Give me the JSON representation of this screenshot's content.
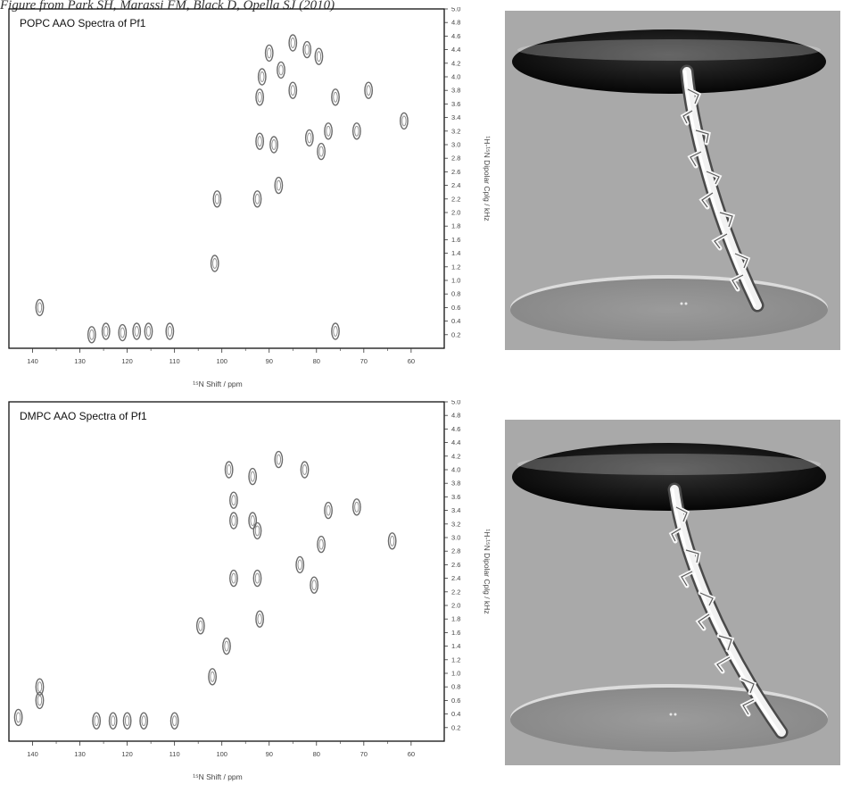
{
  "caption": "Figure from Park SH, Marassi FM, Black D, Opella SJ (2010)",
  "chart_data": [
    {
      "type": "scatter",
      "title": "POPC AAO Spectra of Pf1",
      "xlabel": "¹⁵N Shift / ppm",
      "ylabel": "¹H-¹⁵N Dipolar Cplg / kHz",
      "xlim": [
        145,
        53
      ],
      "ylim": [
        0.0,
        5.0
      ],
      "x_ticks": [
        "140",
        "130",
        "120",
        "110",
        "100",
        "90",
        "80",
        "70",
        "60"
      ],
      "y_ticks": [
        "0.2",
        "0.4",
        "0.6",
        "0.8",
        "1.0",
        "1.2",
        "1.4",
        "1.6",
        "1.8",
        "2.0",
        "2.2",
        "2.4",
        "2.6",
        "2.8",
        "3.0",
        "3.2",
        "3.4",
        "3.6",
        "3.8",
        "4.0",
        "4.2",
        "4.4",
        "4.6",
        "4.8",
        "5.0"
      ],
      "grid": false,
      "points": [
        {
          "x": 138.5,
          "y": 0.6
        },
        {
          "x": 127.5,
          "y": 0.2
        },
        {
          "x": 124.5,
          "y": 0.25
        },
        {
          "x": 121.0,
          "y": 0.23
        },
        {
          "x": 118.0,
          "y": 0.25
        },
        {
          "x": 115.5,
          "y": 0.25
        },
        {
          "x": 111.0,
          "y": 0.25
        },
        {
          "x": 101.5,
          "y": 1.25
        },
        {
          "x": 101.0,
          "y": 2.2
        },
        {
          "x": 92.5,
          "y": 2.2
        },
        {
          "x": 88.0,
          "y": 2.4
        },
        {
          "x": 92.0,
          "y": 3.05
        },
        {
          "x": 89.0,
          "y": 3.0
        },
        {
          "x": 92.0,
          "y": 3.7
        },
        {
          "x": 91.5,
          "y": 4.0
        },
        {
          "x": 90.0,
          "y": 4.35
        },
        {
          "x": 87.5,
          "y": 4.1
        },
        {
          "x": 85.0,
          "y": 4.5
        },
        {
          "x": 85.0,
          "y": 3.8
        },
        {
          "x": 82.0,
          "y": 4.4
        },
        {
          "x": 79.5,
          "y": 4.3
        },
        {
          "x": 81.5,
          "y": 3.1
        },
        {
          "x": 77.5,
          "y": 3.2
        },
        {
          "x": 79.0,
          "y": 2.9
        },
        {
          "x": 76.0,
          "y": 3.7
        },
        {
          "x": 71.5,
          "y": 3.2
        },
        {
          "x": 69.0,
          "y": 3.8
        },
        {
          "x": 61.5,
          "y": 3.35
        },
        {
          "x": 76.0,
          "y": 0.25
        }
      ]
    },
    {
      "type": "scatter",
      "title": "DMPC AAO Spectra of Pf1",
      "xlabel": "¹⁵N Shift / ppm",
      "ylabel": "¹H-¹⁵N Dipolar Cplg / kHz",
      "xlim": [
        145,
        53
      ],
      "ylim": [
        0.0,
        5.0
      ],
      "x_ticks": [
        "140",
        "130",
        "120",
        "110",
        "100",
        "90",
        "80",
        "70",
        "60"
      ],
      "y_ticks": [
        "0.2",
        "0.4",
        "0.6",
        "0.8",
        "1.0",
        "1.2",
        "1.4",
        "1.6",
        "1.8",
        "2.0",
        "2.2",
        "2.4",
        "2.6",
        "2.8",
        "3.0",
        "3.2",
        "3.4",
        "3.6",
        "3.8",
        "4.0",
        "4.2",
        "4.4",
        "4.6",
        "4.8",
        "5.0"
      ],
      "grid": false,
      "points": [
        {
          "x": 143.0,
          "y": 0.35
        },
        {
          "x": 138.5,
          "y": 0.8
        },
        {
          "x": 138.5,
          "y": 0.6
        },
        {
          "x": 126.5,
          "y": 0.3
        },
        {
          "x": 123.0,
          "y": 0.3
        },
        {
          "x": 120.0,
          "y": 0.3
        },
        {
          "x": 116.5,
          "y": 0.3
        },
        {
          "x": 110.0,
          "y": 0.3
        },
        {
          "x": 102.0,
          "y": 0.95
        },
        {
          "x": 99.0,
          "y": 1.4
        },
        {
          "x": 104.5,
          "y": 1.7
        },
        {
          "x": 97.5,
          "y": 2.4
        },
        {
          "x": 92.5,
          "y": 2.4
        },
        {
          "x": 92.0,
          "y": 1.8
        },
        {
          "x": 98.5,
          "y": 4.0
        },
        {
          "x": 93.5,
          "y": 3.9
        },
        {
          "x": 88.0,
          "y": 4.15
        },
        {
          "x": 82.5,
          "y": 4.0
        },
        {
          "x": 97.5,
          "y": 3.55
        },
        {
          "x": 97.5,
          "y": 3.25
        },
        {
          "x": 92.5,
          "y": 3.1
        },
        {
          "x": 93.5,
          "y": 3.25
        },
        {
          "x": 83.5,
          "y": 2.6
        },
        {
          "x": 80.5,
          "y": 2.3
        },
        {
          "x": 79.0,
          "y": 2.9
        },
        {
          "x": 77.5,
          "y": 3.4
        },
        {
          "x": 71.5,
          "y": 3.45
        },
        {
          "x": 64.0,
          "y": 2.95
        }
      ]
    }
  ]
}
